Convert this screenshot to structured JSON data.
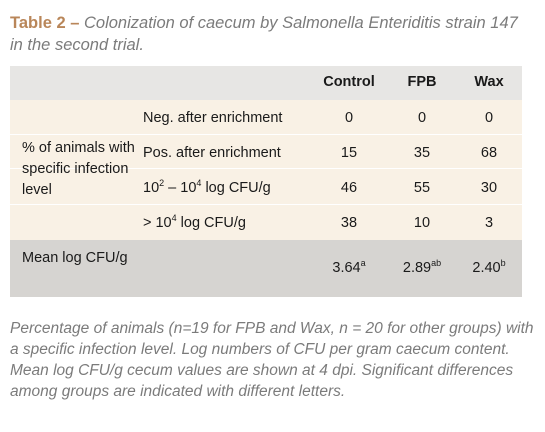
{
  "caption": {
    "label": "Table 2 –",
    "title": "Colonization of caecum by Salmonella Enteriditis strain 147 in the second trial."
  },
  "table": {
    "headers": [
      "Control",
      "FPB",
      "Wax"
    ],
    "group_label": "% of animals with specific infection level",
    "rows": [
      {
        "label": "Neg. after enrichment",
        "values": [
          "0",
          "0",
          "0"
        ]
      },
      {
        "label": "Pos. after enrichment",
        "values": [
          "15",
          "35",
          "68"
        ]
      },
      {
        "label_parts": [
          "10",
          "2",
          " – 10",
          "4",
          " log CFU/g"
        ],
        "values": [
          "46",
          "55",
          "30"
        ]
      },
      {
        "label_parts": [
          "> 10",
          "4",
          " log CFU/g"
        ],
        "values": [
          "38",
          "10",
          "3"
        ]
      }
    ],
    "mean": {
      "label": "Mean log CFU/g",
      "values": [
        {
          "value": "3.64",
          "sup": "a"
        },
        {
          "value": "2.89",
          "sup": "ab"
        },
        {
          "value": "2.40",
          "sup": "b"
        }
      ]
    }
  },
  "footnote": "Percentage of animals (n=19 for FPB and Wax, n = 20 for other groups) with a specific infection level. Log numbers of CFU per gram caecum content. Mean log CFU/g cecum values are shown at 4 dpi. Significant differences among groups are indicated with different letters.",
  "colors": {
    "caption_label": "#b98659",
    "caption_text": "#7b7b7b",
    "header_bg": "#e7e6e4",
    "body_bg": "#f9f1e5",
    "mean_bg": "#d6d4d1"
  }
}
